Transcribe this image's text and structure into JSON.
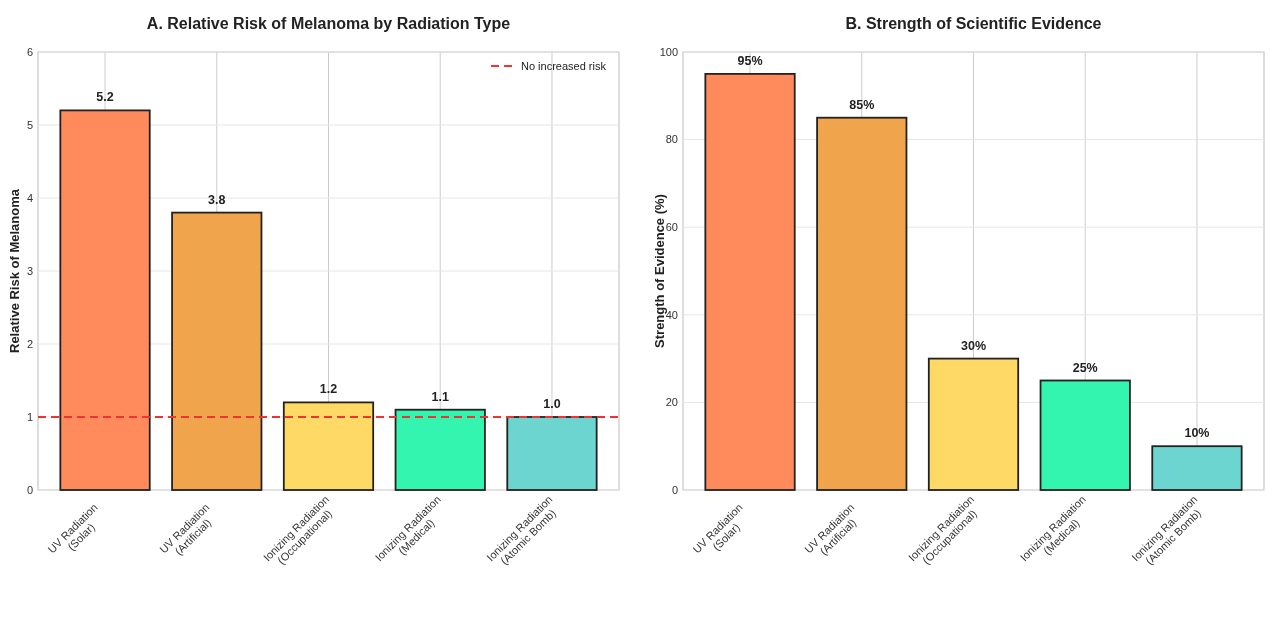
{
  "chart_data": [
    {
      "type": "bar",
      "title": "A. Relative Risk of Melanoma by Radiation Type",
      "ylabel": "Relative Risk of Melanoma",
      "categories": [
        "UV Radiation\n(Solar)",
        "UV Radiation\n(Artificial)",
        "Ionizing Radiation\n(Occupational)",
        "Ionizing Radiation\n(Medical)",
        "Ionizing Radiation\n(Atomic Bomb)"
      ],
      "values": [
        5.2,
        3.8,
        1.2,
        1.1,
        1.0
      ],
      "value_labels": [
        "5.2",
        "3.8",
        "1.2",
        "1.1",
        "1.0"
      ],
      "colors": [
        "#ff8a5c",
        "#f0a54c",
        "#ffd966",
        "#33f5b0",
        "#6dd5cf"
      ],
      "ylim": [
        0,
        6
      ],
      "yticks": [
        0,
        1,
        2,
        3,
        4,
        5,
        6
      ],
      "grid": true,
      "legend": "top right",
      "ref_lines": [
        {
          "axis": "y",
          "value": 1,
          "label": "No increased risk",
          "color": "#ee3333",
          "line_style": "dashed"
        }
      ]
    },
    {
      "type": "bar",
      "title": "B. Strength of Scientific Evidence",
      "ylabel": "Strength of Evidence (%)",
      "categories": [
        "UV Radiation\n(Solar)",
        "UV Radiation\n(Artificial)",
        "Ionizing Radiation\n(Occupational)",
        "Ionizing Radiation\n(Medical)",
        "Ionizing Radiation\n(Atomic Bomb)"
      ],
      "values": [
        95,
        85,
        30,
        25,
        10
      ],
      "value_labels": [
        "95%",
        "85%",
        "30%",
        "25%",
        "10%"
      ],
      "colors": [
        "#ff8a5c",
        "#f0a54c",
        "#ffd966",
        "#33f5b0",
        "#6dd5cf"
      ],
      "ylim": [
        0,
        100
      ],
      "yticks": [
        0,
        20,
        40,
        60,
        80,
        100
      ],
      "grid": true
    }
  ]
}
